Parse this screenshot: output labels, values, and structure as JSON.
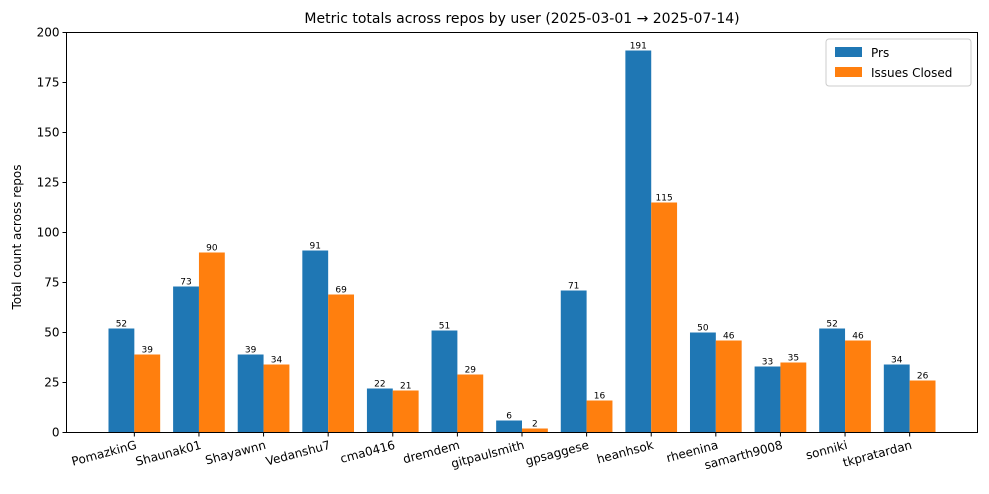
{
  "chart_data": {
    "type": "bar",
    "title": "Metric totals across repos by user (2025-03-01 → 2025-07-14)",
    "xlabel": "",
    "ylabel": "Total count across repos",
    "ylim": [
      0,
      200
    ],
    "yticks": [
      0,
      25,
      50,
      75,
      100,
      125,
      150,
      175,
      200
    ],
    "grid": false,
    "legend_position": "top-right",
    "categories": [
      "PomazkinG",
      "Shaunak01",
      "Shayawnn",
      "Vedanshu7",
      "cma0416",
      "dremdem",
      "gitpaulsmith",
      "gpsaggese",
      "heanhsok",
      "rheenina",
      "samarth9008",
      "sonniki",
      "tkpratardan"
    ],
    "series": [
      {
        "name": "Prs",
        "color": "#1f77b4",
        "values": [
          52,
          73,
          39,
          91,
          22,
          51,
          6,
          71,
          191,
          50,
          33,
          52,
          34
        ]
      },
      {
        "name": "Issues Closed",
        "color": "#ff7f0e",
        "values": [
          39,
          90,
          34,
          69,
          21,
          29,
          2,
          16,
          115,
          46,
          35,
          46,
          26
        ]
      }
    ]
  }
}
